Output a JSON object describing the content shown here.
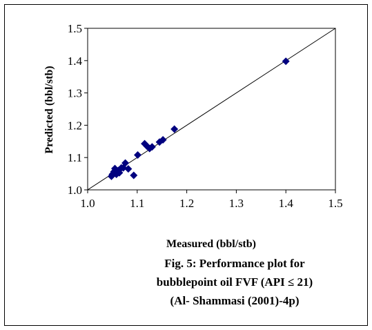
{
  "chart_data": {
    "type": "scatter",
    "xlabel": "Measured (bbl/stb)",
    "ylabel": "Predicted (bbl/stb)",
    "xlim": [
      1.0,
      1.5
    ],
    "ylim": [
      1.0,
      1.5
    ],
    "x_ticks": [
      "1.0",
      "1.1",
      "1.2",
      "1.3",
      "1.4",
      "1.5"
    ],
    "y_ticks": [
      "1.0",
      "1.1",
      "1.2",
      "1.3",
      "1.4",
      "1.5"
    ],
    "reference_line": {
      "type": "y=x"
    },
    "marker": {
      "shape": "diamond",
      "color": "#00007f"
    },
    "grid": false,
    "points": [
      {
        "x": 1.048,
        "y": 1.042
      },
      {
        "x": 1.05,
        "y": 1.048
      },
      {
        "x": 1.053,
        "y": 1.056
      },
      {
        "x": 1.055,
        "y": 1.066
      },
      {
        "x": 1.058,
        "y": 1.048
      },
      {
        "x": 1.062,
        "y": 1.06
      },
      {
        "x": 1.064,
        "y": 1.053
      },
      {
        "x": 1.068,
        "y": 1.068
      },
      {
        "x": 1.072,
        "y": 1.068
      },
      {
        "x": 1.076,
        "y": 1.083
      },
      {
        "x": 1.082,
        "y": 1.065
      },
      {
        "x": 1.093,
        "y": 1.045
      },
      {
        "x": 1.101,
        "y": 1.108
      },
      {
        "x": 1.115,
        "y": 1.143
      },
      {
        "x": 1.12,
        "y": 1.135
      },
      {
        "x": 1.125,
        "y": 1.128
      },
      {
        "x": 1.13,
        "y": 1.133
      },
      {
        "x": 1.145,
        "y": 1.148
      },
      {
        "x": 1.152,
        "y": 1.155
      },
      {
        "x": 1.175,
        "y": 1.188
      },
      {
        "x": 1.4,
        "y": 1.398
      }
    ]
  },
  "caption": {
    "line1": "Fig. 5: Performance plot for",
    "line2": "bubblepoint oil FVF (API ≤ 21)",
    "line3": "(Al- Shammasi (2001)-4p)"
  }
}
